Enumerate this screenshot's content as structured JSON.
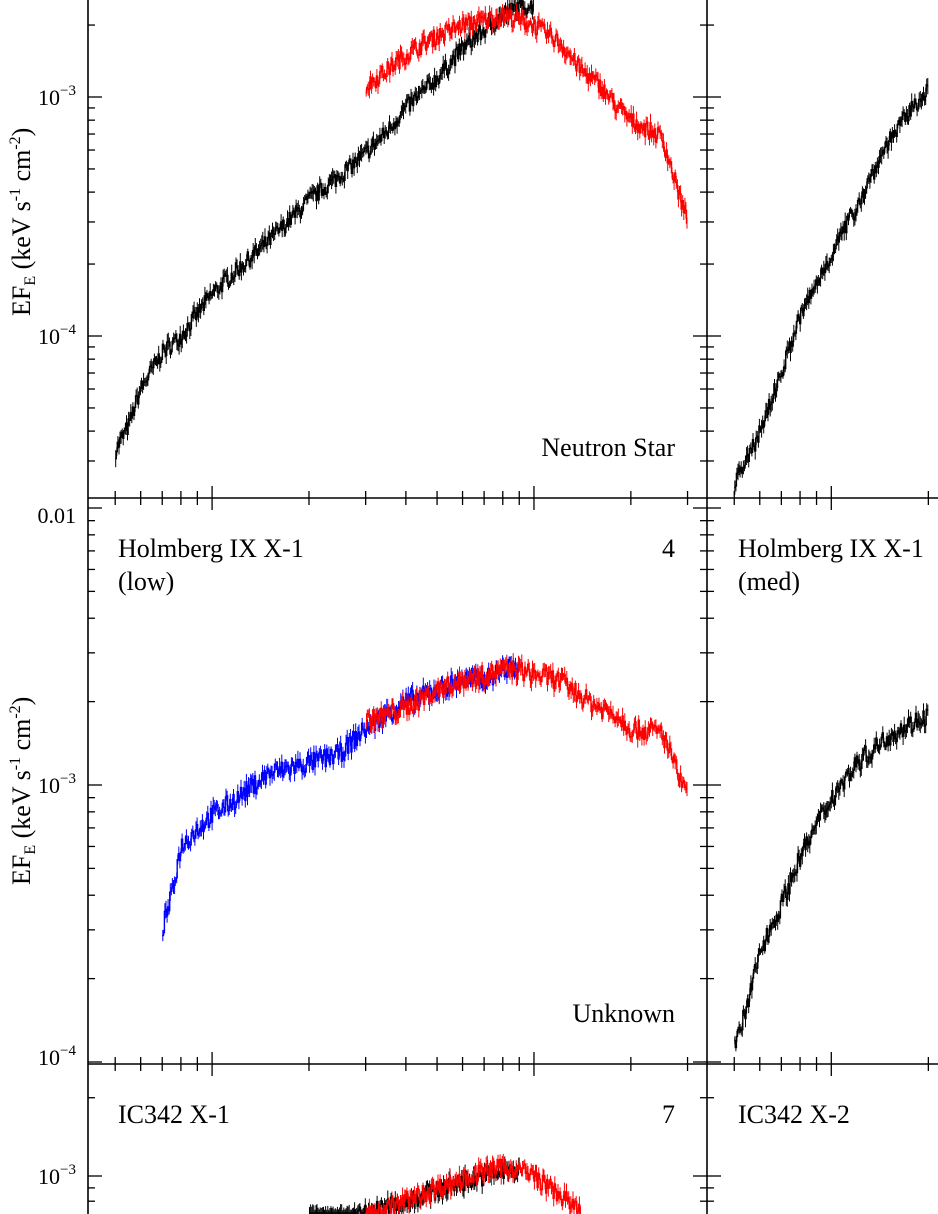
{
  "chart_data": [
    {
      "type": "line",
      "yscale": "log",
      "ylim": [
        2e-05,
        0.004
      ],
      "ylabel": "EF_E (keV s^-1 cm^-2)",
      "ytick_labels": [
        {
          "value": 0.001,
          "text": "10^-3"
        },
        {
          "value": 0.0001,
          "text": "10^-4"
        }
      ],
      "annotation": "Neutron Star",
      "series": [
        {
          "color": "#000000",
          "x": [
            0.5,
            0.55,
            0.6,
            0.7,
            0.8,
            1.0,
            1.2,
            1.5,
            2.0,
            2.5,
            3.0,
            3.5,
            4.0,
            5.0,
            6.0,
            7.0,
            8.0,
            9.0,
            10.0
          ],
          "y": [
            3.3e-05,
            4.2e-05,
            6e-05,
            8.5e-05,
            0.0001,
            0.00015,
            0.00019,
            0.00025,
            0.00037,
            0.00047,
            0.00058,
            0.00072,
            0.0009,
            0.0012,
            0.0016,
            0.0019,
            0.0022,
            0.0024,
            0.0024
          ]
        },
        {
          "color": "#ff0000",
          "x": [
            3.0,
            4.0,
            5.0,
            6.0,
            7.0,
            8.0,
            9.0,
            10.0,
            12.0,
            14.0,
            16.0,
            18.0,
            20.0,
            25.0,
            30.0
          ],
          "y": [
            0.0011,
            0.0015,
            0.0018,
            0.002,
            0.0021,
            0.0022,
            0.0021,
            0.002,
            0.0017,
            0.0013,
            0.00112,
            0.00092,
            0.0008,
            0.00068,
            0.0003
          ]
        }
      ]
    },
    {
      "type": "line",
      "yscale": "log",
      "ylim": [
        0.0001,
        0.01
      ],
      "ylabel": "EF_E (keV s^-1 cm^-2)",
      "ytick_labels": [
        {
          "value": 0.01,
          "text": "0.01"
        },
        {
          "value": 0.001,
          "text": "10^-3"
        },
        {
          "value": 0.0001,
          "text": "10^-4"
        }
      ],
      "title": "Holmberg IX X-1",
      "subtitle": "(low)",
      "panel_number": "4",
      "annotation": "Unknown",
      "series": [
        {
          "color": "#0000ff",
          "x": [
            0.7,
            0.75,
            0.8,
            0.85,
            1.0,
            1.2,
            1.5,
            2.0,
            2.5,
            3.0,
            3.5,
            4.0,
            5.0,
            6.0,
            7.0,
            8.0,
            9.0
          ],
          "y": [
            0.0003,
            0.0004,
            0.0006,
            0.00065,
            0.00078,
            0.0009,
            0.0011,
            0.0012,
            0.0013,
            0.0016,
            0.0018,
            0.002,
            0.0022,
            0.0024,
            0.0024,
            0.0026,
            0.0027
          ]
        },
        {
          "color": "#ff0000",
          "x": [
            3.0,
            4.0,
            5.0,
            6.0,
            7.0,
            8.0,
            9.0,
            10.0,
            12.0,
            14.0,
            16.0,
            18.0,
            20.0,
            25.0,
            30.0
          ],
          "y": [
            0.0017,
            0.0019,
            0.0022,
            0.0024,
            0.0025,
            0.0026,
            0.0026,
            0.0025,
            0.0024,
            0.0021,
            0.0019,
            0.0018,
            0.0016,
            0.00155,
            0.0009
          ]
        }
      ]
    },
    {
      "type": "line",
      "yscale": "log",
      "ylim": [
        0.0004,
        0.0025
      ],
      "ytick_labels": [
        {
          "value": 0.001,
          "text": "10^-3"
        }
      ],
      "title": "IC342 X-1",
      "panel_number": "7",
      "series": [
        {
          "color": "#000000",
          "x": [
            2.0,
            2.5,
            3.0,
            4.0,
            5.0,
            6.0,
            7.0,
            8.0,
            9.0
          ],
          "y": [
            0.00062,
            0.00066,
            0.00072,
            0.0008,
            0.00088,
            0.00095,
            0.001,
            0.00104,
            0.00105
          ]
        },
        {
          "color": "#ff0000",
          "x": [
            3.0,
            4.0,
            5.0,
            6.0,
            7.0,
            8.0,
            9.0,
            10.0,
            12.0,
            14.0
          ],
          "y": [
            0.0007,
            0.0008,
            0.0009,
            0.00098,
            0.00104,
            0.00108,
            0.00106,
            0.001,
            0.00085,
            0.00072
          ]
        }
      ]
    },
    {
      "type": "line",
      "yscale": "log",
      "series": [
        {
          "color": "#000000",
          "x": [
            0.5,
            0.55,
            0.6,
            0.7,
            0.8,
            1.0,
            1.2,
            1.5,
            2.0
          ],
          "y": [
            2.5e-05,
            3e-05,
            4e-05,
            7e-05,
            0.00012,
            0.00022,
            0.00035,
            0.00065,
            0.0011
          ]
        }
      ]
    },
    {
      "type": "line",
      "yscale": "log",
      "title": "Holmberg IX X-1",
      "subtitle": "(med)",
      "series": [
        {
          "color": "#000000",
          "x": [
            0.5,
            0.55,
            0.6,
            0.7,
            0.8,
            1.0,
            1.2,
            1.5,
            2.0
          ],
          "y": [
            0.00011,
            0.00016,
            0.00025,
            0.00037,
            0.00055,
            0.0009,
            0.0012,
            0.0015,
            0.0018
          ]
        }
      ]
    },
    {
      "type": "line",
      "yscale": "log",
      "title": "IC342 X-2",
      "series": []
    }
  ]
}
